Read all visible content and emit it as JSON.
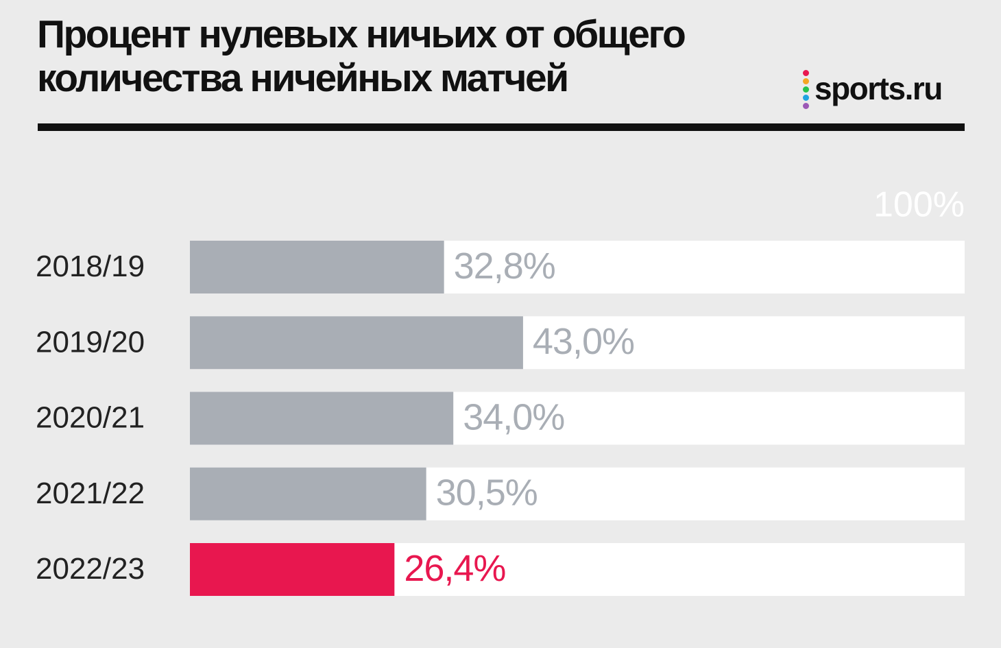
{
  "chart_data": {
    "type": "bar",
    "orientation": "horizontal",
    "title": "Процент нулевых ничьих от общего количества ничейных матчей",
    "source": "sports.ru",
    "categories": [
      "2018/19",
      "2019/20",
      "2020/21",
      "2021/22",
      "2022/23"
    ],
    "values": [
      32.8,
      43.0,
      34.0,
      30.5,
      26.4
    ],
    "value_labels": [
      "32,8%",
      "43,0%",
      "34,0%",
      "30,5%",
      "26,4%"
    ],
    "colors": [
      "#a9aeb5",
      "#a9aeb5",
      "#a9aeb5",
      "#a9aeb5",
      "#e8174f"
    ],
    "xlim": [
      0,
      100
    ],
    "xticks": [
      {
        "value": 100,
        "label": "100%"
      }
    ]
  }
}
